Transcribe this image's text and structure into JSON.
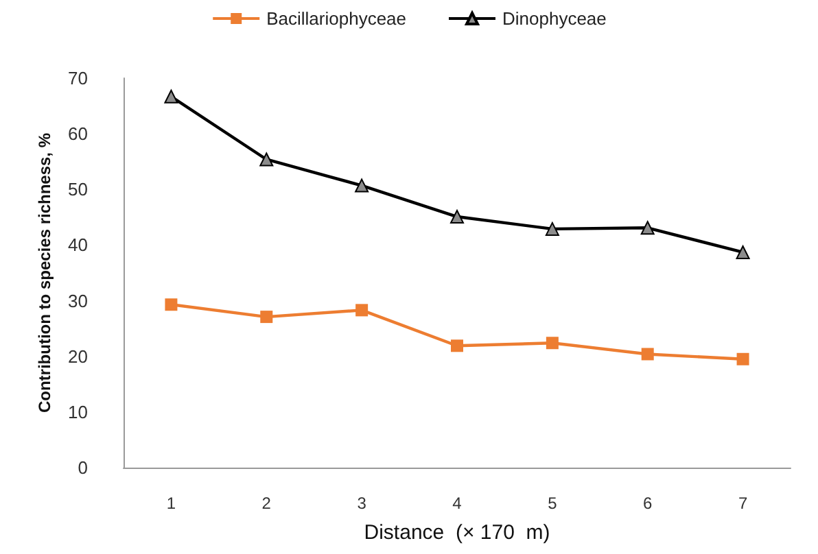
{
  "chart_data": {
    "type": "line",
    "xlabel": "Distance  (× 170  m)",
    "ylabel": "Contribution to species richness, %",
    "categories": [
      "1",
      "2",
      "3",
      "4",
      "5",
      "6",
      "7"
    ],
    "series": [
      {
        "name": "Bacillariophyceae",
        "color": "#ed7d31",
        "marker": "square",
        "values": [
          29.3,
          27.1,
          28.3,
          21.9,
          22.4,
          20.4,
          19.5
        ]
      },
      {
        "name": "Dinophyceae",
        "color": "#000000",
        "marker": "triangle",
        "values": [
          66.7,
          55.4,
          50.7,
          45.1,
          42.9,
          43.1,
          38.7
        ]
      }
    ],
    "ylim": [
      0,
      70
    ],
    "yticks": [
      0,
      10,
      20,
      30,
      40,
      50,
      60,
      70
    ],
    "grid": false,
    "legend": "top"
  }
}
